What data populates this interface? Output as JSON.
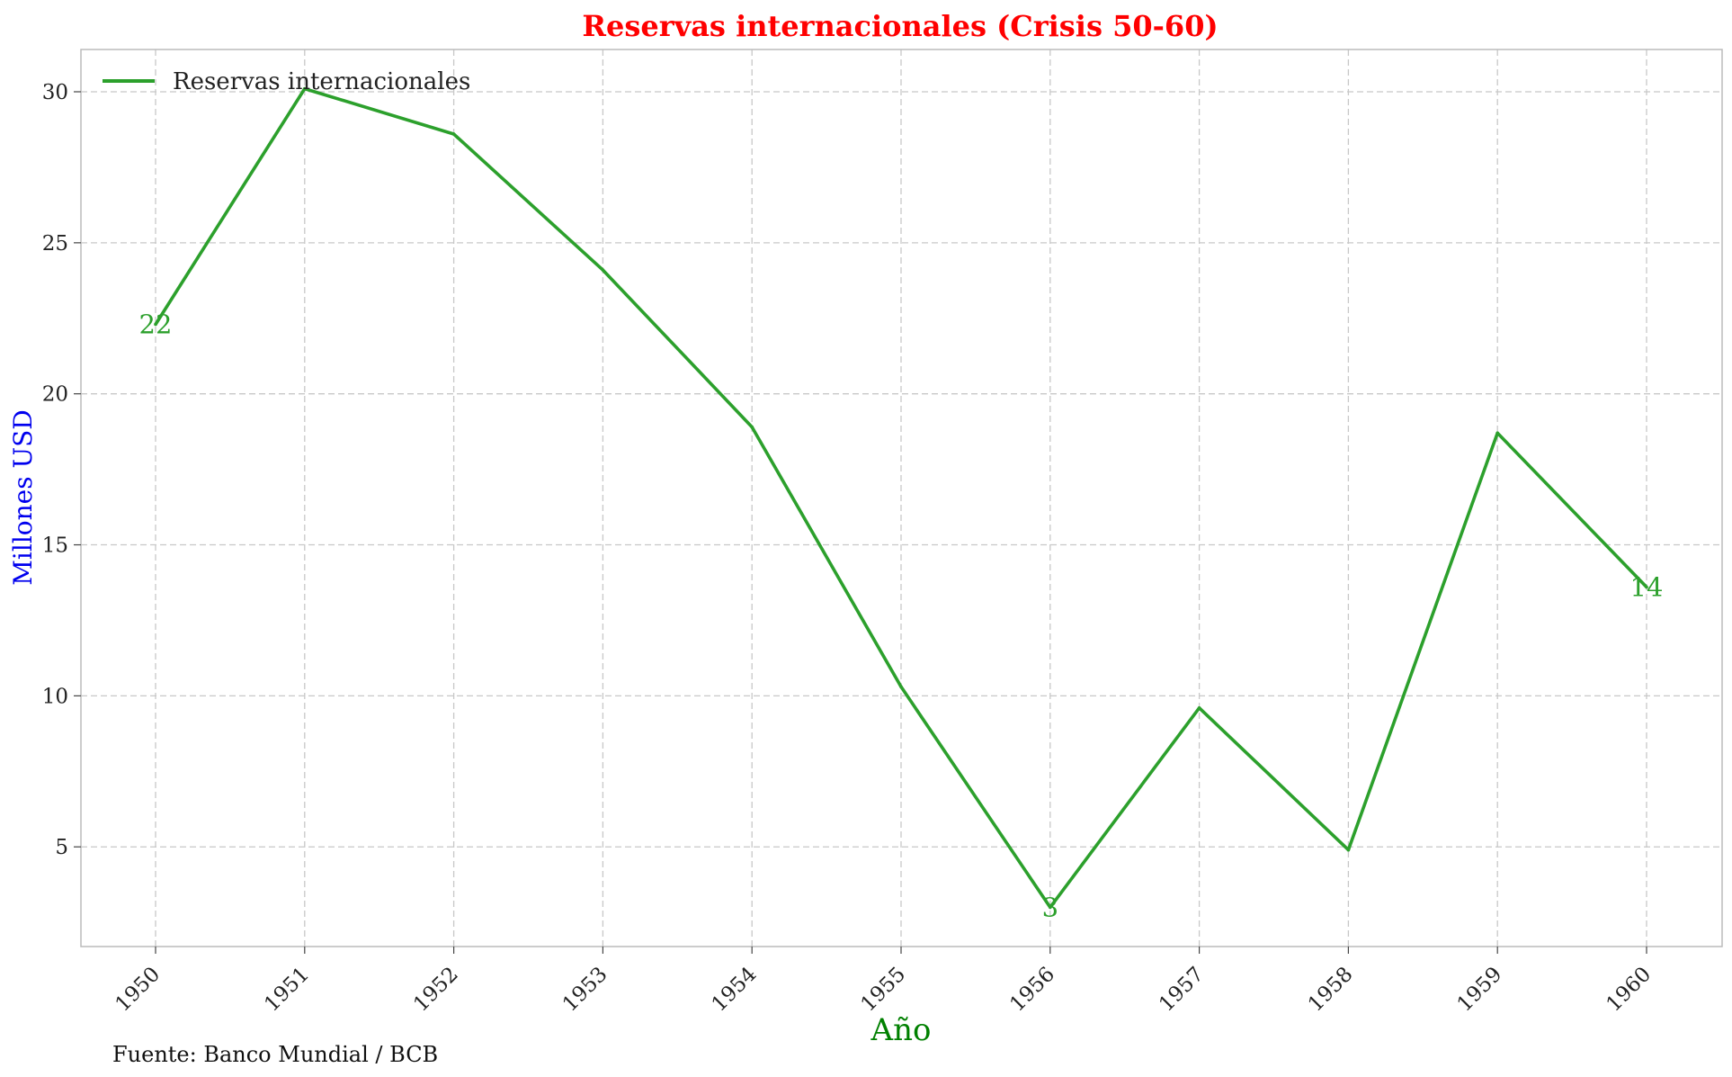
{
  "chart_data": {
    "type": "line",
    "title": "Reservas internacionales (Crisis 50-60)",
    "xlabel": "Año",
    "ylabel": "Millones USD",
    "x": [
      "1950",
      "1951",
      "1952",
      "1953",
      "1954",
      "1955",
      "1956",
      "1957",
      "1958",
      "1959",
      "1960"
    ],
    "series": [
      {
        "name": "Reservas internacionales",
        "color": "#2ca02c",
        "values": [
          22.3,
          30.1,
          28.6,
          24.1,
          18.9,
          10.3,
          3.0,
          9.6,
          4.9,
          18.7,
          13.6
        ]
      }
    ],
    "yticks": [
      5,
      10,
      15,
      20,
      25,
      30
    ],
    "ylim": [
      1.7,
      31.4
    ],
    "grid": true,
    "legend_position": "top-left",
    "annotations": [
      {
        "index": 0,
        "text": "22"
      },
      {
        "index": 6,
        "text": "3"
      },
      {
        "index": 10,
        "text": "14"
      }
    ],
    "source_note": "Fuente: Banco Mundial / BCB"
  }
}
